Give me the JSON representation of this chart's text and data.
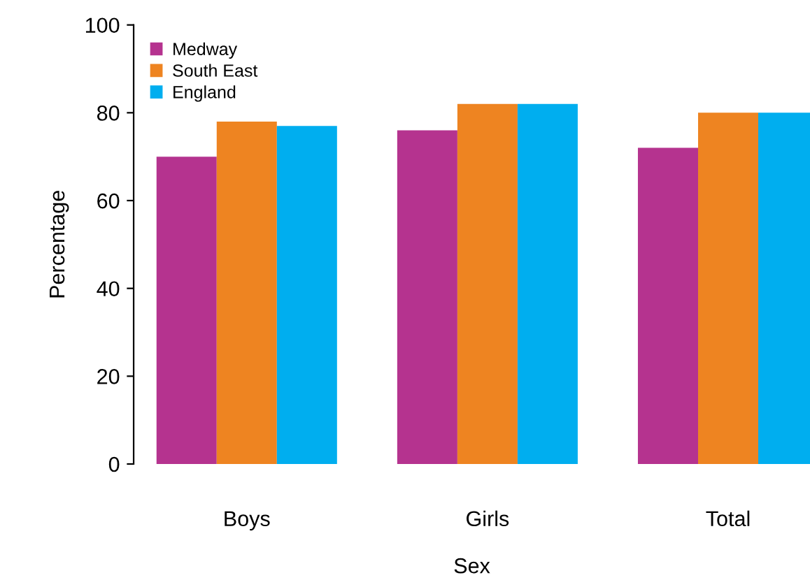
{
  "chart_data": {
    "type": "bar",
    "xlabel": "Sex",
    "ylabel": "Percentage",
    "categories": [
      "Boys",
      "Girls",
      "Total"
    ],
    "series": [
      {
        "name": "Medway",
        "color": "#b5338f",
        "values": [
          70,
          76,
          72
        ]
      },
      {
        "name": "South East",
        "color": "#ee8421",
        "values": [
          78,
          82,
          80
        ]
      },
      {
        "name": "England",
        "color": "#00aeef",
        "values": [
          77,
          82,
          80
        ]
      }
    ],
    "ylim": [
      0,
      100
    ],
    "yticks": [
      0,
      20,
      40,
      60,
      80,
      100
    ],
    "grid": false,
    "legend": "top left"
  }
}
